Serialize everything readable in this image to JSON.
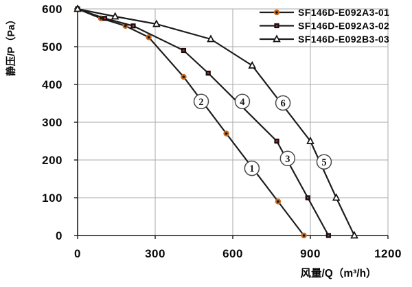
{
  "chart_data": {
    "type": "line",
    "title": "",
    "xlabel": "风量/Q（m³/h）",
    "ylabel": "静压/P（Pa）",
    "xlim": [
      0,
      1200
    ],
    "ylim": [
      0,
      600
    ],
    "x_ticks": [
      0,
      300,
      600,
      900,
      1200
    ],
    "y_ticks": [
      0,
      100,
      200,
      300,
      400,
      500,
      600
    ],
    "grid": true,
    "legend_position": "top-right-inside",
    "series": [
      {
        "name": "SF146D-E092A3-01",
        "marker": "filled-circle-orange-ring",
        "line_color": "#1c1c1c",
        "marker_fill": "#111111",
        "marker_accent": "#c96a1f",
        "points": [
          [
            0,
            600
          ],
          [
            90,
            575
          ],
          [
            185,
            555
          ],
          [
            275,
            525
          ],
          [
            410,
            420
          ],
          [
            575,
            270
          ],
          [
            775,
            90
          ],
          [
            875,
            0
          ]
        ]
      },
      {
        "name": "SF146D-E092A3-02",
        "marker": "filled-square-red-dot",
        "line_color": "#1c1c1c",
        "marker_fill": "#111111",
        "marker_accent": "#cc2a2a",
        "points": [
          [
            0,
            600
          ],
          [
            105,
            575
          ],
          [
            215,
            555
          ],
          [
            410,
            490
          ],
          [
            505,
            430
          ],
          [
            770,
            250
          ],
          [
            890,
            100
          ],
          [
            970,
            0
          ]
        ]
      },
      {
        "name": "SF146D-E092B3-03",
        "marker": "open-triangle",
        "line_color": "#1c1c1c",
        "marker_fill": "#ffffff",
        "marker_accent": "#111111",
        "points": [
          [
            0,
            600
          ],
          [
            145,
            580
          ],
          [
            305,
            560
          ],
          [
            515,
            520
          ],
          [
            675,
            450
          ],
          [
            900,
            250
          ],
          [
            1000,
            100
          ],
          [
            1070,
            0
          ]
        ]
      }
    ],
    "annotations": [
      {
        "label": "1",
        "x": 674,
        "y": 178
      },
      {
        "label": "2",
        "x": 478,
        "y": 355
      },
      {
        "label": "3",
        "x": 812,
        "y": 204
      },
      {
        "label": "4",
        "x": 637,
        "y": 355
      },
      {
        "label": "5",
        "x": 953,
        "y": 195
      },
      {
        "label": "6",
        "x": 794,
        "y": 351
      }
    ],
    "colors": {
      "line": "#1c1c1c",
      "grid": "#a8a8a8",
      "axis": "#1a1a1a",
      "text": "#000000",
      "annotation_stroke": "#4a4a4a",
      "background": "#ffffff"
    }
  }
}
